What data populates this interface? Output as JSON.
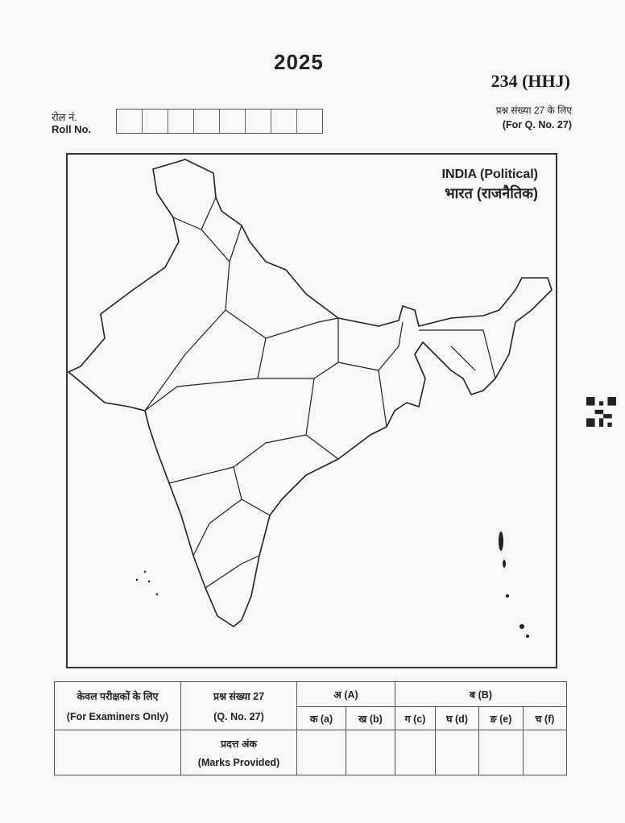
{
  "header": {
    "year": "2025",
    "paper_code": "234 (HHJ)",
    "question_note_hi": "प्रश्न संख्या 27 के लिए",
    "question_note_en": "(For Q. No. 27)",
    "roll_label_hi": "रोल नं.",
    "roll_label_en": "Roll No.",
    "roll_boxes": 8
  },
  "map": {
    "title_en": "INDIA (Political)",
    "title_hi": "भारत (राजनैतिक)"
  },
  "examiner_table": {
    "col1_hi": "केवल परीक्षकों के लिए",
    "col1_en": "(For Examiners Only)",
    "q_hi": "प्रश्न संख्या 27",
    "q_en": "(Q. No. 27)",
    "group_a": "अ (A)",
    "group_b": "ब (B)",
    "subparts": [
      "क (a)",
      "ख (b)",
      "ग (c)",
      "घ (d)",
      "ङ (e)",
      "च (f)"
    ],
    "marks_hi": "प्रदत्त अंक",
    "marks_en": "(Marks Provided)"
  }
}
